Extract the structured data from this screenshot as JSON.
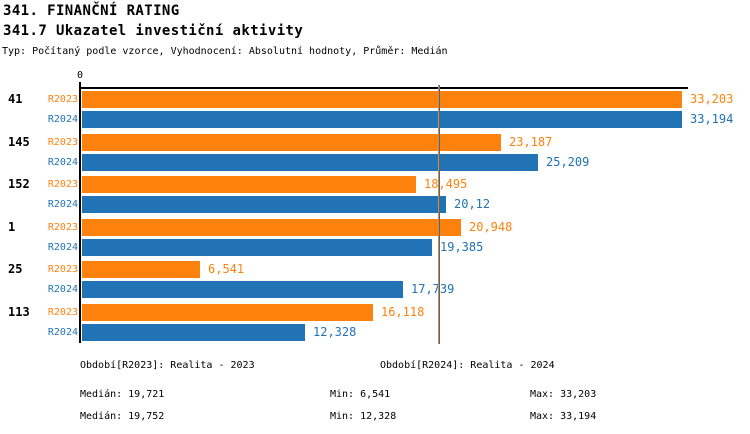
{
  "header": {
    "title": "341. FINANČNÍ RATING",
    "subtitle": "341.7 Ukazatel investiční aktivity",
    "type_line": "Typ: Počítaný podle vzorce, Vyhodnocení: Absolutní hodnoty, Průměr: Medián"
  },
  "colors": {
    "r2023_orange": "#FD820D",
    "r2024_blue": "#2173B5",
    "axis_black": "#000000"
  },
  "chart_data": {
    "type": "bar",
    "orientation": "horizontal",
    "title": "341.7 Ukazatel investiční aktivity",
    "categories": [
      "41",
      "145",
      "152",
      "1",
      "25",
      "113"
    ],
    "series": [
      {
        "name": "R2023",
        "color": "#FD820D",
        "values": [
          33.203,
          23.187,
          18.495,
          20.948,
          6.541,
          16.118
        ],
        "labels": [
          "33,203",
          "23,187",
          "18,495",
          "20,948",
          "6,541",
          "16,118"
        ]
      },
      {
        "name": "R2024",
        "color": "#2173B5",
        "values": [
          33.194,
          25.209,
          20.12,
          19.385,
          17.739,
          12.328
        ],
        "labels": [
          "33,194",
          "25,209",
          "20,12",
          "19,385",
          "17,739",
          "12,328"
        ]
      }
    ],
    "xlim": [
      0,
      33.4
    ],
    "axis_tick": "0",
    "grid": false,
    "legend_position": "bottom",
    "median_lines": [
      {
        "series": "R2023",
        "value": 19.721,
        "color": "#FD820D"
      },
      {
        "series": "R2024",
        "value": 19.752,
        "color": "#2173B5"
      }
    ]
  },
  "footer": {
    "legend_r2023": "Období[R2023]: Realita - 2023",
    "legend_r2024": "Období[R2024]: Realita - 2024",
    "stats_r2023": {
      "median": "Medián: 19,721",
      "min": "Min: 6,541",
      "max": "Max: 33,203"
    },
    "stats_r2024": {
      "median": "Medián: 19,752",
      "min": "Min: 12,328",
      "max": "Max: 33,194"
    }
  }
}
